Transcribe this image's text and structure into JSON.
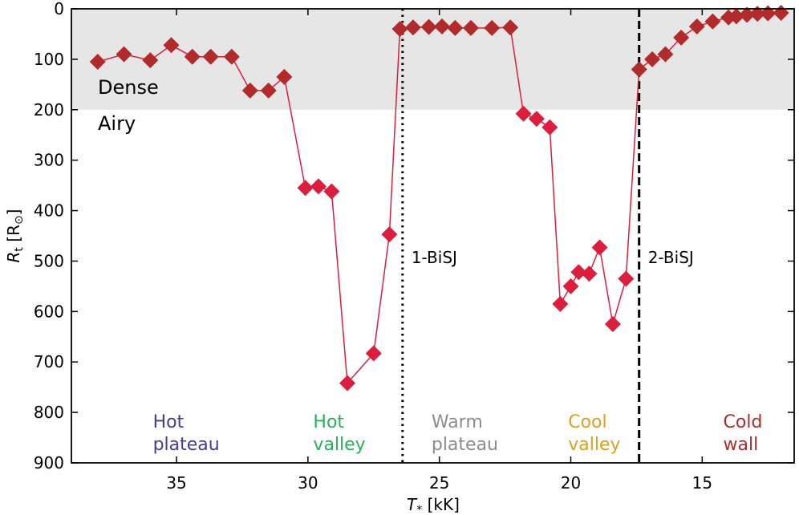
{
  "chart_data": {
    "type": "scatter",
    "xlabel_sym": "T",
    "xlabel_sub": "*",
    "xlabel_unit": " [kK]",
    "ylabel_sym": "R",
    "ylabel_sub": "t",
    "ylabel_unit": " [R",
    "ylabel_unit_sym": "⊙",
    "ylabel_unit_close": "]",
    "xlim": [
      39,
      11.5
    ],
    "ylim": [
      900,
      0
    ],
    "x_ticks": [
      35,
      30,
      25,
      20,
      15
    ],
    "y_ticks": [
      0,
      100,
      200,
      300,
      400,
      500,
      600,
      700,
      800,
      900
    ],
    "shade": {
      "y0": 0,
      "y1": 200,
      "color": "#e6e6e6"
    },
    "threshold": 200,
    "colors": {
      "dense": "#b22a2a",
      "airy": "#dc1e3c",
      "line": "#dc1e3c"
    },
    "dense_label": "Dense",
    "airy_label": "Airy",
    "vlines": [
      {
        "x": 26.4,
        "style": "dotted",
        "label": "1-BiSJ"
      },
      {
        "x": 17.4,
        "style": "dashed",
        "label": "2-BiSJ"
      }
    ],
    "regions": [
      {
        "line1": "Hot",
        "line2": "plateau",
        "x": 35.9,
        "color": "#463c96"
      },
      {
        "line1": "Hot",
        "line2": "valley",
        "x": 29.8,
        "color": "#2ab05c"
      },
      {
        "line1": "Warm",
        "line2": "plateau",
        "x": 25.3,
        "color": "#8c8c8c"
      },
      {
        "line1": "Cool",
        "line2": "valley",
        "x": 20.1,
        "color": "#dca01e"
      },
      {
        "line1": "Cold",
        "line2": "wall",
        "x": 14.2,
        "color": "#b22a2a"
      }
    ],
    "series": [
      {
        "x": [
          38.0,
          37.0,
          36.0,
          35.2,
          34.4,
          33.7,
          32.9,
          32.2,
          31.5,
          30.9,
          30.1,
          29.6,
          29.1,
          28.5,
          27.5,
          26.9,
          26.5,
          26.0,
          25.4,
          24.9,
          24.4,
          23.8,
          23.0,
          22.3,
          21.8,
          21.3,
          20.8,
          20.4,
          20.0,
          19.7,
          19.3,
          18.9,
          18.4,
          17.9,
          17.4,
          16.9,
          16.4,
          15.8,
          15.2,
          14.6,
          14.0,
          13.7,
          13.3,
          12.9,
          12.5,
          12.0
        ],
        "y": [
          105,
          90,
          102,
          72,
          95,
          95,
          95,
          162,
          162,
          135,
          355,
          352,
          362,
          742,
          683,
          447,
          40,
          37,
          36,
          35,
          38,
          38,
          38,
          37,
          208,
          218,
          235,
          585,
          550,
          522,
          525,
          473,
          625,
          535,
          120,
          100,
          90,
          57,
          35,
          25,
          17,
          15,
          12,
          10,
          9,
          8
        ]
      }
    ]
  }
}
